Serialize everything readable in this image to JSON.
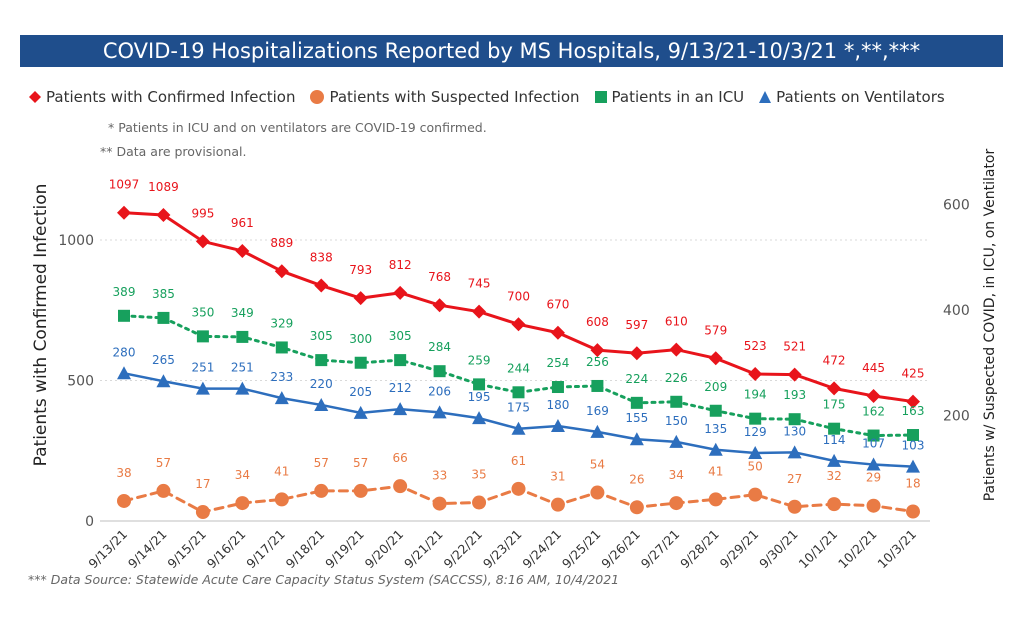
{
  "title": "COVID-19 Hospitalizations Reported by MS Hospitals, 9/13/21-10/3/21 *,**,***",
  "notes": {
    "note1": "* Patients in ICU and on ventilators are COVID-19 confirmed.",
    "note2": "** Data are provisional."
  },
  "footer": "*** Data Source: Statewide Acute Care Capacity Status System (SACCSS), 8:16 AM, 10/4/2021",
  "colors": {
    "confirmed": "#e8141b",
    "suspected": "#e97b45",
    "icu": "#17a05d",
    "vent": "#2d6ebd",
    "title_bg": "#1f4e8c"
  },
  "chart_data": {
    "type": "line",
    "x": [
      "9/13/21",
      "9/14/21",
      "9/15/21",
      "9/16/21",
      "9/17/21",
      "9/18/21",
      "9/19/21",
      "9/20/21",
      "9/21/21",
      "9/22/21",
      "9/23/21",
      "9/24/21",
      "9/25/21",
      "9/26/21",
      "9/27/21",
      "9/28/21",
      "9/29/21",
      "9/30/21",
      "10/1/21",
      "10/2/21",
      "10/3/21"
    ],
    "ylabel": "Patients with Confirmed Infection",
    "y2label": "Patients w/ Suspected COVID, in ICU, on Ventilator",
    "ylim": [
      0,
      1200
    ],
    "y2lim": [
      0,
      650
    ],
    "yticks": [
      0,
      500,
      1000
    ],
    "y2ticks": [
      200,
      400,
      600
    ],
    "grid": true,
    "legend_position": "top",
    "series": [
      {
        "name": "Patients with Confirmed Infection",
        "axis": "left",
        "marker": "diamond",
        "line": "solid",
        "color": "#e8141b",
        "values": [
          1097,
          1089,
          995,
          961,
          889,
          838,
          793,
          812,
          768,
          745,
          700,
          670,
          608,
          597,
          610,
          579,
          523,
          521,
          472,
          445,
          425
        ]
      },
      {
        "name": "Patients with Suspected Infection",
        "axis": "right",
        "marker": "circle",
        "line": "dashed",
        "color": "#e97b45",
        "values": [
          38,
          57,
          17,
          34,
          41,
          57,
          57,
          66,
          33,
          35,
          61,
          31,
          54,
          26,
          34,
          41,
          50,
          27,
          32,
          29,
          18
        ]
      },
      {
        "name": "Patients in an ICU",
        "axis": "right",
        "marker": "square",
        "line": "dotted",
        "color": "#17a05d",
        "values": [
          389,
          385,
          350,
          349,
          329,
          305,
          300,
          305,
          284,
          259,
          244,
          254,
          256,
          224,
          226,
          209,
          194,
          193,
          175,
          162,
          163
        ]
      },
      {
        "name": "Patients on Ventilators",
        "axis": "right",
        "marker": "triangle",
        "line": "solid",
        "color": "#2d6ebd",
        "values": [
          280,
          265,
          251,
          251,
          233,
          220,
          205,
          212,
          206,
          195,
          175,
          180,
          169,
          155,
          150,
          135,
          129,
          130,
          114,
          107,
          103
        ]
      }
    ]
  }
}
